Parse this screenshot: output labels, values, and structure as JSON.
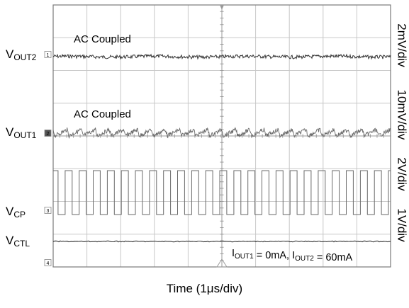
{
  "chart_data": {
    "type": "line",
    "xlabel": "Time (1μs/div)",
    "x_divisions": 10,
    "y_divisions": 8,
    "grid": true,
    "channels": [
      {
        "id": "vout2",
        "label_main": "V",
        "label_sub": "OUT2",
        "scale": "2mV/div",
        "coupling_note": "AC Coupled",
        "marker": "1",
        "waveform": "noise",
        "color": "#303030"
      },
      {
        "id": "vout1",
        "label_main": "V",
        "label_sub": "OUT1",
        "scale": "10mV/div",
        "coupling_note": "AC Coupled",
        "marker": "2",
        "waveform": "ripple",
        "ripple_cycles": 24,
        "color": "#6a6a6a"
      },
      {
        "id": "vcp",
        "label_main": "V",
        "label_sub": "CP",
        "scale": "2V/div",
        "marker": "3",
        "waveform": "square",
        "square_cycles": 24,
        "color": "#6a6a6a"
      },
      {
        "id": "vctl",
        "label_main": "V",
        "label_sub": "CTL",
        "scale": "1V/div",
        "marker": "4",
        "waveform": "flat",
        "color": "#303030"
      }
    ],
    "annotation": {
      "parts": [
        {
          "main": "I",
          "sub": "OUT1"
        },
        {
          "main": " = 0mA, I",
          "sub": "OUT2"
        },
        {
          "main": " = 60mA",
          "sub": ""
        }
      ]
    }
  }
}
